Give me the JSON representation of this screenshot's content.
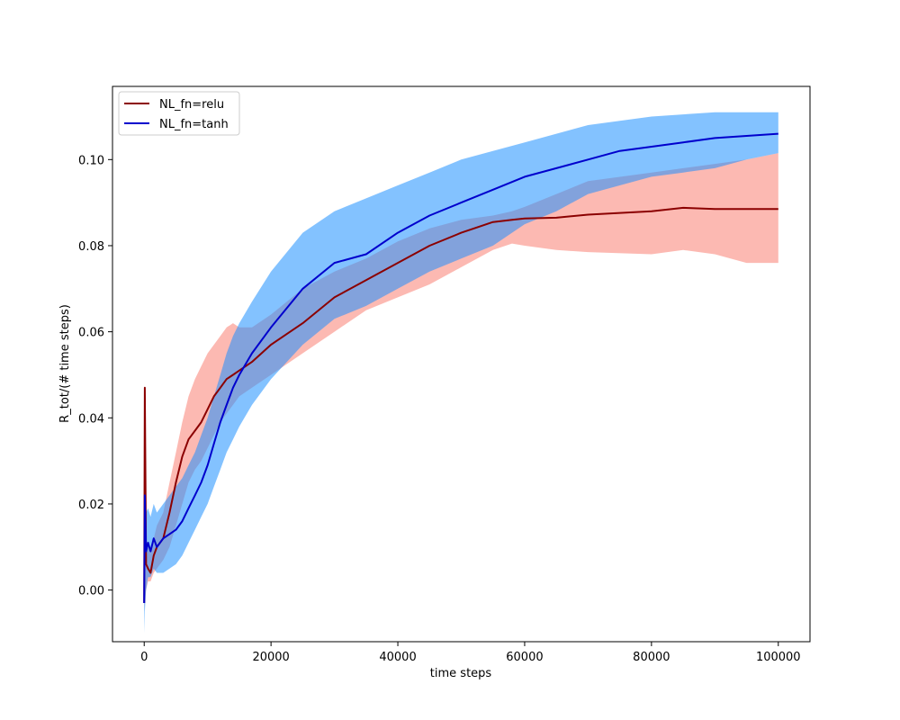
{
  "chart_data": {
    "type": "line",
    "title": "",
    "xlabel": "time steps",
    "ylabel": "R_tot/(# time steps)",
    "xlim": [
      -5000,
      105000
    ],
    "ylim": [
      -0.012,
      0.117
    ],
    "xticks": [
      0,
      20000,
      40000,
      60000,
      80000,
      100000
    ],
    "xtick_labels": [
      "0",
      "20000",
      "40000",
      "60000",
      "80000",
      "100000"
    ],
    "yticks": [
      0.0,
      0.02,
      0.04,
      0.06,
      0.08,
      0.1
    ],
    "ytick_labels": [
      "0.00",
      "0.02",
      "0.04",
      "0.06",
      "0.08",
      "0.10"
    ],
    "grid": false,
    "legend_position": "top-left",
    "series": [
      {
        "name": "NL_fn=relu",
        "color": "#8b0000",
        "band_color": "#fa8072",
        "x": [
          0,
          100,
          300,
          600,
          1000,
          1500,
          2000,
          3000,
          4000,
          5000,
          6000,
          7000,
          8000,
          9000,
          10000,
          11000,
          12000,
          13000,
          14000,
          15000,
          17000,
          20000,
          25000,
          30000,
          35000,
          40000,
          45000,
          50000,
          55000,
          58000,
          60000,
          65000,
          70000,
          80000,
          85000,
          90000,
          95000,
          100000
        ],
        "y": [
          -0.003,
          0.047,
          0.006,
          0.005,
          0.004,
          0.008,
          0.01,
          0.012,
          0.018,
          0.025,
          0.031,
          0.035,
          0.037,
          0.039,
          0.042,
          0.045,
          0.047,
          0.049,
          0.05,
          0.051,
          0.053,
          0.057,
          0.062,
          0.068,
          0.072,
          0.076,
          0.08,
          0.083,
          0.0855,
          0.086,
          0.0863,
          0.0865,
          0.0872,
          0.088,
          0.0888,
          0.0885,
          0.0885,
          0.0885
        ],
        "lower": [
          -0.005,
          -0.002,
          0.0,
          0.002,
          0.002,
          0.004,
          0.005,
          0.007,
          0.01,
          0.015,
          0.02,
          0.025,
          0.028,
          0.03,
          0.033,
          0.036,
          0.039,
          0.041,
          0.043,
          0.045,
          0.047,
          0.05,
          0.055,
          0.06,
          0.065,
          0.068,
          0.071,
          0.075,
          0.079,
          0.0805,
          0.08,
          0.079,
          0.0785,
          0.078,
          0.079,
          0.078,
          0.076,
          0.076
        ],
        "upper": [
          0.002,
          0.048,
          0.012,
          0.01,
          0.009,
          0.012,
          0.015,
          0.018,
          0.025,
          0.032,
          0.039,
          0.045,
          0.049,
          0.052,
          0.055,
          0.057,
          0.059,
          0.061,
          0.062,
          0.061,
          0.061,
          0.064,
          0.07,
          0.074,
          0.077,
          0.081,
          0.084,
          0.086,
          0.087,
          0.088,
          0.089,
          0.092,
          0.095,
          0.097,
          0.098,
          0.099,
          0.1,
          0.1015
        ]
      },
      {
        "name": "NL_fn=tanh",
        "color": "#0000cd",
        "band_color": "#1e90ff",
        "x": [
          0,
          100,
          300,
          600,
          1000,
          1500,
          2000,
          3000,
          4000,
          5000,
          6000,
          7000,
          8000,
          9000,
          10000,
          11000,
          12000,
          13000,
          14000,
          15000,
          17000,
          20000,
          25000,
          30000,
          35000,
          40000,
          45000,
          50000,
          55000,
          60000,
          65000,
          70000,
          75000,
          80000,
          85000,
          90000,
          95000,
          100000
        ],
        "y": [
          -0.003,
          0.022,
          0.009,
          0.011,
          0.009,
          0.012,
          0.01,
          0.012,
          0.013,
          0.014,
          0.016,
          0.019,
          0.022,
          0.025,
          0.029,
          0.034,
          0.039,
          0.043,
          0.047,
          0.05,
          0.055,
          0.061,
          0.07,
          0.076,
          0.078,
          0.083,
          0.087,
          0.09,
          0.093,
          0.096,
          0.098,
          0.1,
          0.102,
          0.103,
          0.104,
          0.105,
          0.1055,
          0.106
        ],
        "lower": [
          -0.01,
          -0.005,
          0.0,
          0.003,
          0.003,
          0.005,
          0.004,
          0.004,
          0.005,
          0.006,
          0.008,
          0.011,
          0.014,
          0.017,
          0.02,
          0.024,
          0.028,
          0.032,
          0.035,
          0.038,
          0.043,
          0.049,
          0.057,
          0.063,
          0.066,
          0.07,
          0.074,
          0.077,
          0.08,
          0.085,
          0.088,
          0.092,
          0.094,
          0.096,
          0.097,
          0.098,
          0.1,
          0.1015
        ],
        "upper": [
          0.003,
          0.023,
          0.018,
          0.019,
          0.017,
          0.02,
          0.018,
          0.02,
          0.022,
          0.024,
          0.026,
          0.029,
          0.032,
          0.036,
          0.04,
          0.045,
          0.05,
          0.055,
          0.059,
          0.062,
          0.067,
          0.074,
          0.083,
          0.088,
          0.091,
          0.094,
          0.097,
          0.1,
          0.102,
          0.104,
          0.106,
          0.108,
          0.109,
          0.11,
          0.1105,
          0.111,
          0.111,
          0.111
        ]
      }
    ]
  }
}
